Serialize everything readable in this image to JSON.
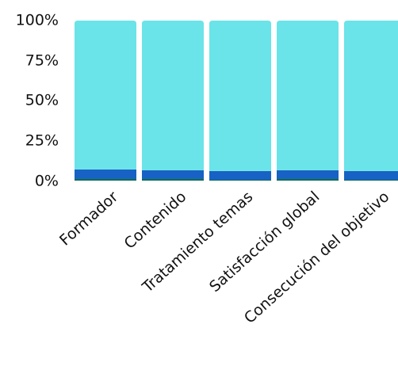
{
  "chart_data": {
    "type": "bar",
    "stacked": true,
    "normalized": true,
    "categories": [
      "Formador",
      "Contenido",
      "Tratamiento temas",
      "Satisfacción global",
      "Consecución del objetivo"
    ],
    "y_ticks": [
      "0%",
      "25%",
      "50%",
      "75%",
      "100%"
    ],
    "ylim": [
      0,
      100
    ],
    "grid": false,
    "series": [
      {
        "color": "#0b6e4f",
        "values": [
          1,
          1,
          0.5,
          1,
          0.5
        ]
      },
      {
        "color": "#1762c4",
        "values": [
          6,
          5.5,
          5.5,
          5.5,
          5.5
        ]
      },
      {
        "color": "#6ae4e8",
        "values": [
          93,
          93.5,
          94,
          93.5,
          94
        ]
      }
    ]
  }
}
